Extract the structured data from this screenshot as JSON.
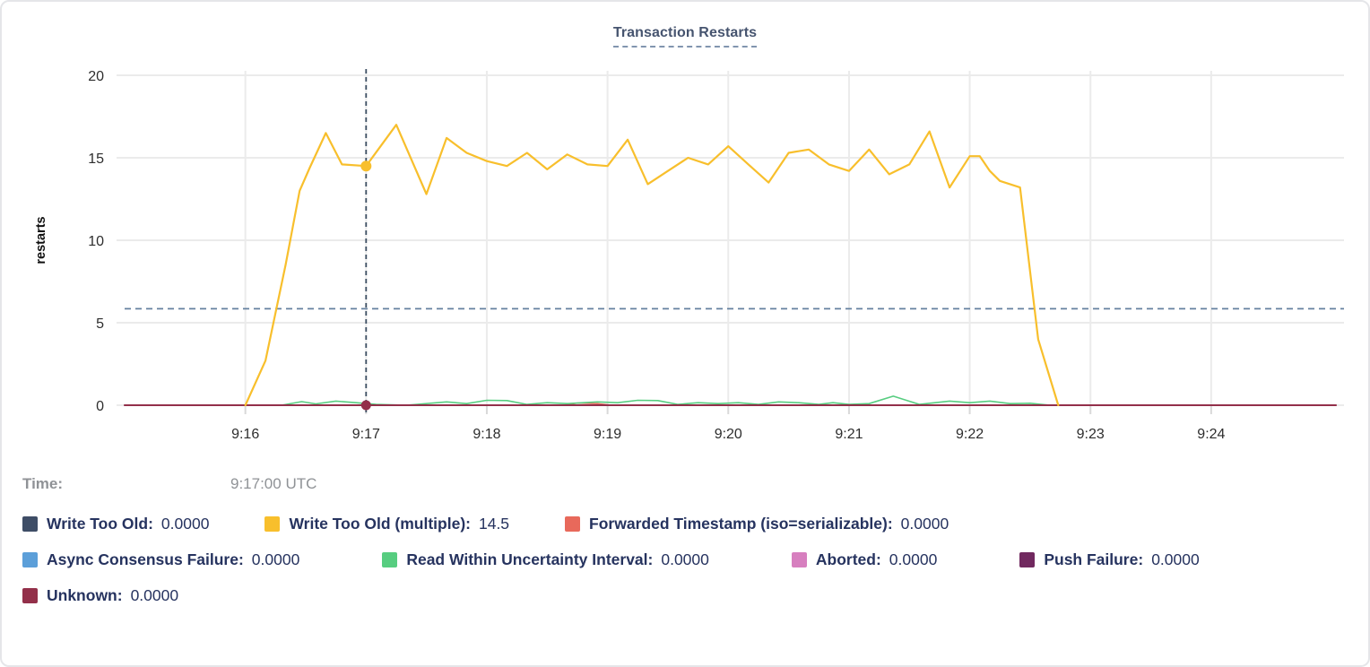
{
  "header": {
    "title": "Transaction Restarts"
  },
  "tooltip": {
    "time_label": "Time:",
    "time_value": "9:17:00 UTC"
  },
  "legend": {
    "rows": [
      {
        "items": [
          {
            "label": "Write Too Old:",
            "value": "0.0000",
            "color": "#3E4D66"
          },
          {
            "label": "Write Too Old (multiple):",
            "value": "14.5",
            "color": "#F8BF2C"
          },
          {
            "label": "Forwarded Timestamp (iso=serializable):",
            "value": "0.0000",
            "color": "#E8695B"
          }
        ]
      },
      {
        "items": [
          {
            "label": "Async Consensus Failure:",
            "value": "0.0000",
            "color": "#5C9FD9"
          },
          {
            "label": "Read Within Uncertainty Interval:",
            "value": "0.0000",
            "color": "#57CD80"
          },
          {
            "label": "Aborted:",
            "value": "0.0000",
            "color": "#D77FBF"
          },
          {
            "label": "Push Failure:",
            "value": "0.0000",
            "color": "#71295F"
          }
        ]
      },
      {
        "items": [
          {
            "label": "Unknown:",
            "value": "0.0000",
            "color": "#93304A"
          }
        ]
      }
    ]
  },
  "chart_data": {
    "type": "line",
    "title": "Transaction Restarts",
    "xlabel": "",
    "ylabel": "restarts",
    "ylim": [
      0,
      20
    ],
    "y_ticks": [
      0,
      5,
      10,
      15,
      20
    ],
    "x_ticks": [
      "9:16",
      "9:17",
      "9:18",
      "9:19",
      "9:20",
      "9:21",
      "9:22",
      "9:23",
      "9:24"
    ],
    "x_range": [
      "9:15:00",
      "9:25:06"
    ],
    "grid": true,
    "legend_position": "bottom",
    "hover_hline_value": 5.85,
    "crosshair": {
      "x": "9:17:00",
      "points": [
        {
          "series": "Write Too Old (multiple)",
          "y": 14.5
        },
        {
          "series": "Unknown",
          "y": 0
        }
      ]
    },
    "series": [
      {
        "name": "Write Too Old",
        "color": "#3E4D66",
        "width": 1.5,
        "points": [
          [
            "9:15:00",
            0
          ],
          [
            "9:25:02",
            0
          ]
        ]
      },
      {
        "name": "Async Consensus Failure",
        "color": "#5C9FD9",
        "width": 1.5,
        "points": [
          [
            "9:15:00",
            0
          ],
          [
            "9:25:02",
            0
          ]
        ]
      },
      {
        "name": "Aborted",
        "color": "#D77FBF",
        "width": 1.5,
        "points": [
          [
            "9:15:00",
            0
          ],
          [
            "9:25:02",
            0
          ]
        ]
      },
      {
        "name": "Push Failure",
        "color": "#71295F",
        "width": 1.5,
        "points": [
          [
            "9:15:00",
            0
          ],
          [
            "9:25:02",
            0
          ]
        ]
      },
      {
        "name": "Forwarded Timestamp (iso=serializable)",
        "color": "#E8695B",
        "width": 1.5,
        "points": [
          [
            "9:15:00",
            0
          ],
          [
            "9:18:38",
            0
          ],
          [
            "9:18:45",
            0.13
          ],
          [
            "9:18:55",
            0.1
          ],
          [
            "9:19:02",
            0
          ],
          [
            "9:25:02",
            0
          ]
        ]
      },
      {
        "name": "Read Within Uncertainty Interval",
        "color": "#57CD80",
        "width": 1.6,
        "points": [
          [
            "9:15:00",
            0
          ],
          [
            "9:16:18",
            0
          ],
          [
            "9:16:28",
            0.22
          ],
          [
            "9:16:35",
            0.08
          ],
          [
            "9:16:45",
            0.25
          ],
          [
            "9:16:55",
            0.15
          ],
          [
            "9:17:05",
            0.05
          ],
          [
            "9:17:20",
            0
          ],
          [
            "9:17:40",
            0.2
          ],
          [
            "9:17:50",
            0.1
          ],
          [
            "9:18:00",
            0.3
          ],
          [
            "9:18:10",
            0.28
          ],
          [
            "9:18:20",
            0.05
          ],
          [
            "9:18:30",
            0.15
          ],
          [
            "9:18:40",
            0.1
          ],
          [
            "9:18:55",
            0.2
          ],
          [
            "9:19:05",
            0.15
          ],
          [
            "9:19:15",
            0.3
          ],
          [
            "9:19:25",
            0.28
          ],
          [
            "9:19:35",
            0.05
          ],
          [
            "9:19:45",
            0.15
          ],
          [
            "9:19:55",
            0.1
          ],
          [
            "9:20:05",
            0.15
          ],
          [
            "9:20:15",
            0.05
          ],
          [
            "9:20:25",
            0.2
          ],
          [
            "9:20:35",
            0.15
          ],
          [
            "9:20:45",
            0.05
          ],
          [
            "9:20:52",
            0.15
          ],
          [
            "9:21:00",
            0.05
          ],
          [
            "9:21:10",
            0.1
          ],
          [
            "9:21:22",
            0.55
          ],
          [
            "9:21:35",
            0.05
          ],
          [
            "9:21:50",
            0.25
          ],
          [
            "9:22:00",
            0.15
          ],
          [
            "9:22:10",
            0.25
          ],
          [
            "9:22:20",
            0.1
          ],
          [
            "9:22:30",
            0.12
          ],
          [
            "9:22:40",
            0
          ]
        ]
      },
      {
        "name": "Unknown",
        "color": "#93304A",
        "width": 2,
        "points": [
          [
            "9:15:00",
            0
          ],
          [
            "9:25:02",
            0
          ]
        ]
      },
      {
        "name": "Write Too Old (multiple)",
        "color": "#F8BF2C",
        "width": 2.2,
        "points": [
          [
            "9:16:00",
            0
          ],
          [
            "9:16:10",
            2.7
          ],
          [
            "9:16:20",
            8.5
          ],
          [
            "9:16:27",
            13
          ],
          [
            "9:16:32",
            14.4
          ],
          [
            "9:16:40",
            16.5
          ],
          [
            "9:16:48",
            14.6
          ],
          [
            "9:17:00",
            14.5
          ],
          [
            "9:17:15",
            17
          ],
          [
            "9:17:30",
            12.8
          ],
          [
            "9:17:40",
            16.2
          ],
          [
            "9:17:50",
            15.3
          ],
          [
            "9:18:00",
            14.8
          ],
          [
            "9:18:10",
            14.5
          ],
          [
            "9:18:20",
            15.3
          ],
          [
            "9:18:30",
            14.3
          ],
          [
            "9:18:40",
            15.2
          ],
          [
            "9:18:50",
            14.6
          ],
          [
            "9:19:00",
            14.5
          ],
          [
            "9:19:10",
            16.1
          ],
          [
            "9:19:20",
            13.4
          ],
          [
            "9:19:30",
            14.2
          ],
          [
            "9:19:40",
            15
          ],
          [
            "9:19:50",
            14.6
          ],
          [
            "9:20:00",
            15.7
          ],
          [
            "9:20:10",
            14.6
          ],
          [
            "9:20:20",
            13.5
          ],
          [
            "9:20:30",
            15.3
          ],
          [
            "9:20:40",
            15.5
          ],
          [
            "9:20:50",
            14.6
          ],
          [
            "9:21:00",
            14.2
          ],
          [
            "9:21:10",
            15.5
          ],
          [
            "9:21:20",
            14
          ],
          [
            "9:21:30",
            14.6
          ],
          [
            "9:21:40",
            16.6
          ],
          [
            "9:21:50",
            13.2
          ],
          [
            "9:22:00",
            15.1
          ],
          [
            "9:22:05",
            15.1
          ],
          [
            "9:22:10",
            14.2
          ],
          [
            "9:22:15",
            13.6
          ],
          [
            "9:22:25",
            13.2
          ],
          [
            "9:22:34",
            4
          ],
          [
            "9:22:44",
            0
          ]
        ]
      }
    ]
  }
}
